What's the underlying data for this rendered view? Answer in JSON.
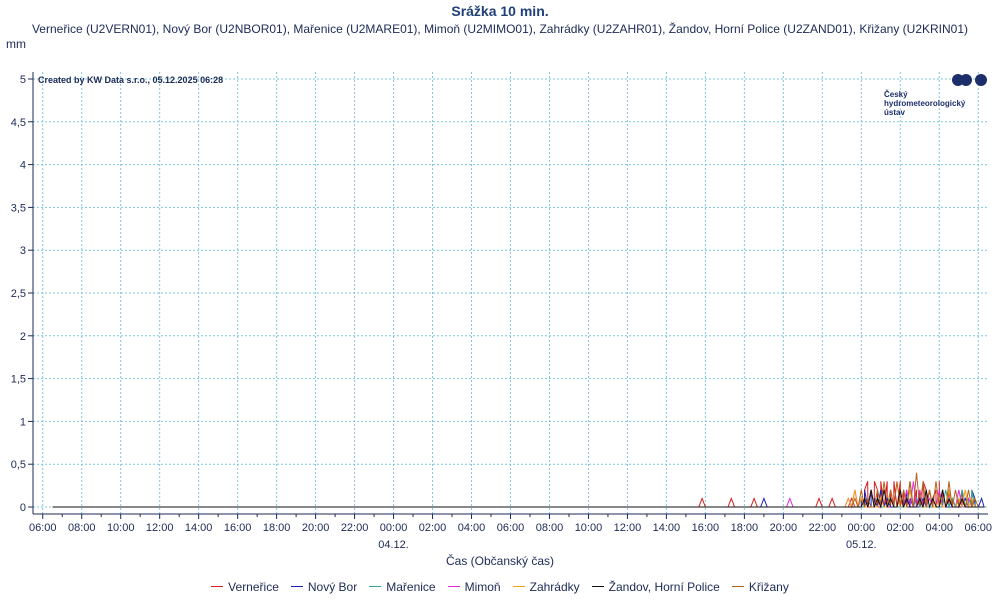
{
  "chart_data": {
    "type": "line",
    "title": "Srážka 10 min.",
    "subtitle": "Verneřice (U2VERN01), Nový Bor (U2NBOR01), Mařenice (U2MARE01), Mimoň (U2MIMO01), Zahrádky (U2ZAHR01), Žandov, Horní Police (U2ZAND01), Křižany (U2KRIN01)",
    "ylabel": "mm",
    "xlabel": "Čas (Občanský čas)",
    "ylim": [
      0,
      5
    ],
    "yticks": [
      0,
      0.5,
      1,
      1.5,
      2,
      2.5,
      3,
      3.5,
      4,
      4.5,
      5
    ],
    "ytick_labels": [
      "0",
      "0,5",
      "1",
      "1,5",
      "2",
      "2,5",
      "3",
      "3,5",
      "4",
      "4,5",
      "5"
    ],
    "xlim": [
      5.5,
      54.5
    ],
    "xticks": [
      6,
      8,
      10,
      12,
      14,
      16,
      18,
      20,
      22,
      24,
      26,
      28,
      30,
      32,
      34,
      36,
      38,
      40,
      42,
      44,
      46,
      48,
      50,
      52,
      54
    ],
    "xtick_labels": [
      "06:00",
      "08:00",
      "10:00",
      "12:00",
      "14:00",
      "16:00",
      "18:00",
      "20:00",
      "22:00",
      "00:00",
      "02:00",
      "04:00",
      "06:00",
      "08:00",
      "10:00",
      "12:00",
      "14:00",
      "16:00",
      "18:00",
      "20:00",
      "22:00",
      "00:00",
      "02:00",
      "04:00",
      "06:00"
    ],
    "date_labels": [
      {
        "x": 24,
        "label": "04.12."
      },
      {
        "x": 48,
        "label": "05.12."
      }
    ],
    "x_unit": "hours since 03.12. 00:00",
    "grid": true,
    "legend_position": "bottom",
    "start": 6.5,
    "end": 54.3,
    "series": [
      {
        "name": "Verneřice",
        "color": "#d81e1e",
        "points": [
          [
            39.83,
            0.1
          ],
          [
            41.33,
            0.1
          ],
          [
            42.5,
            0.1
          ],
          [
            45.83,
            0.1
          ],
          [
            46.5,
            0.1
          ],
          [
            47.5,
            0.1
          ],
          [
            48.17,
            0.2
          ],
          [
            48.33,
            0.3
          ],
          [
            48.67,
            0.3
          ],
          [
            48.83,
            0.2
          ],
          [
            49.0,
            0.3
          ],
          [
            49.33,
            0.3
          ],
          [
            49.5,
            0.2
          ],
          [
            49.67,
            0.3
          ],
          [
            50.0,
            0.3
          ],
          [
            50.17,
            0.2
          ],
          [
            50.5,
            0.3
          ],
          [
            50.83,
            0.2
          ],
          [
            51.0,
            0.2
          ],
          [
            51.17,
            0.3
          ],
          [
            51.33,
            0.2
          ],
          [
            51.67,
            0.1
          ],
          [
            51.83,
            0.2
          ],
          [
            52.0,
            0.3
          ],
          [
            52.17,
            0.2
          ],
          [
            52.5,
            0.2
          ],
          [
            52.67,
            0.1
          ],
          [
            53.0,
            0.1
          ],
          [
            53.17,
            0.2
          ],
          [
            53.5,
            0.1
          ],
          [
            53.67,
            0.1
          ],
          [
            53.83,
            0.0
          ]
        ]
      },
      {
        "name": "Nový Bor",
        "color": "#1d1db3",
        "points": [
          [
            43.0,
            0.1
          ],
          [
            48.0,
            0.1
          ],
          [
            48.17,
            0.2
          ],
          [
            48.5,
            0.2
          ],
          [
            48.67,
            0.1
          ],
          [
            49.0,
            0.2
          ],
          [
            49.33,
            0.1
          ],
          [
            50.33,
            0.2
          ],
          [
            50.5,
            0.1
          ],
          [
            51.17,
            0.1
          ],
          [
            51.5,
            0.2
          ],
          [
            52.0,
            0.1
          ],
          [
            53.33,
            0.1
          ],
          [
            53.67,
            0.2
          ],
          [
            53.83,
            0.1
          ],
          [
            54.17,
            0.1
          ]
        ]
      },
      {
        "name": "Mařenice",
        "color": "#2ea59a",
        "points": [
          [
            48.5,
            0.2
          ],
          [
            48.83,
            0.2
          ],
          [
            49.5,
            0.1
          ],
          [
            50.5,
            0.2
          ],
          [
            50.83,
            0.1
          ],
          [
            52.33,
            0.2
          ],
          [
            52.67,
            0.1
          ],
          [
            53.17,
            0.2
          ],
          [
            53.5,
            0.1
          ],
          [
            53.67,
            0.2
          ],
          [
            53.83,
            0.0
          ]
        ]
      },
      {
        "name": "Mimoň",
        "color": "#e02de0",
        "points": [
          [
            44.33,
            0.1
          ],
          [
            47.33,
            0.1
          ],
          [
            47.67,
            0.2
          ],
          [
            48.0,
            0.1
          ],
          [
            48.5,
            0.2
          ],
          [
            49.0,
            0.1
          ],
          [
            49.5,
            0.2
          ],
          [
            50.0,
            0.1
          ],
          [
            50.33,
            0.2
          ],
          [
            50.67,
            0.3
          ],
          [
            51.0,
            0.2
          ],
          [
            51.5,
            0.1
          ],
          [
            52.0,
            0.2
          ],
          [
            52.5,
            0.1
          ],
          [
            53.0,
            0.2
          ],
          [
            53.5,
            0.1
          ]
        ]
      },
      {
        "name": "Zahrádky",
        "color": "#f2a21b",
        "points": [
          [
            47.33,
            0.1
          ],
          [
            47.67,
            0.2
          ],
          [
            48.0,
            0.1
          ],
          [
            48.5,
            0.2
          ],
          [
            49.0,
            0.1
          ],
          [
            49.5,
            0.2
          ],
          [
            50.0,
            0.1
          ],
          [
            50.5,
            0.2
          ],
          [
            51.0,
            0.1
          ],
          [
            51.5,
            0.2
          ],
          [
            52.0,
            0.1
          ],
          [
            52.5,
            0.2
          ],
          [
            53.0,
            0.1
          ],
          [
            53.33,
            0.2
          ],
          [
            53.67,
            0.1
          ]
        ]
      },
      {
        "name": "Žandov, Horní Police",
        "color": "#111111",
        "points": [
          [
            48.17,
            0.1
          ],
          [
            48.5,
            0.2
          ],
          [
            48.83,
            0.1
          ],
          [
            49.17,
            0.2
          ],
          [
            49.5,
            0.1
          ],
          [
            50.0,
            0.2
          ],
          [
            50.33,
            0.1
          ],
          [
            51.0,
            0.1
          ],
          [
            51.33,
            0.2
          ],
          [
            51.67,
            0.1
          ],
          [
            52.17,
            0.2
          ],
          [
            52.5,
            0.1
          ],
          [
            53.17,
            0.1
          ],
          [
            53.5,
            0.0
          ]
        ]
      },
      {
        "name": "Křižany",
        "color": "#b3621e",
        "points": [
          [
            47.67,
            0.1
          ],
          [
            48.0,
            0.2
          ],
          [
            48.33,
            0.1
          ],
          [
            48.83,
            0.2
          ],
          [
            49.17,
            0.3
          ],
          [
            49.5,
            0.2
          ],
          [
            49.83,
            0.3
          ],
          [
            50.17,
            0.2
          ],
          [
            50.5,
            0.3
          ],
          [
            50.83,
            0.4
          ],
          [
            51.17,
            0.3
          ],
          [
            51.5,
            0.2
          ],
          [
            51.83,
            0.3
          ],
          [
            52.17,
            0.2
          ],
          [
            52.5,
            0.3
          ],
          [
            52.83,
            0.2
          ],
          [
            53.17,
            0.1
          ],
          [
            53.5,
            0.2
          ],
          [
            53.83,
            0.1
          ]
        ]
      }
    ]
  },
  "credit": "Created by KW Data s.r.o., 05.12.2025 06:28",
  "logo": {
    "text": [
      "Český",
      "hydrometeorologický",
      "ústav"
    ],
    "color": "#1d2f6b"
  }
}
